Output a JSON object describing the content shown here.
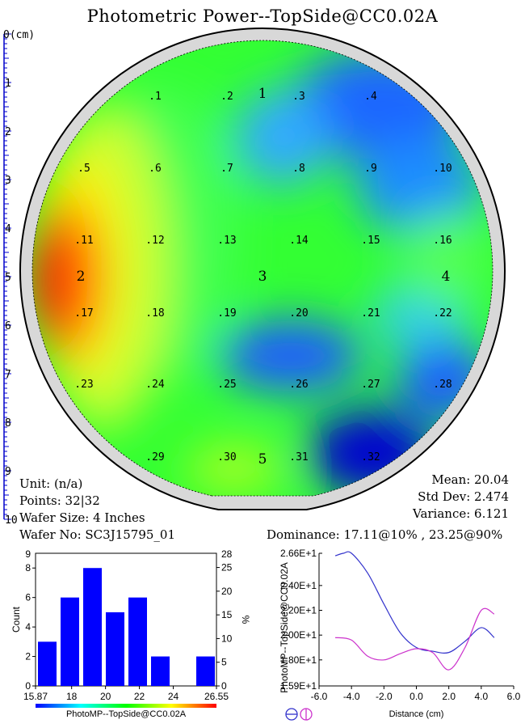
{
  "title": "Photometric Power--TopSide@CC0.02A",
  "colors": {
    "hist_bar": "#0000ff",
    "scan_h": "#3333cc",
    "scan_v": "#cc33cc",
    "wafer_ring": "#000000"
  },
  "wafer_map": {
    "ruler_label": "0(cm)",
    "ruler_ticks": [
      "1",
      "2",
      "3",
      "4",
      "5",
      "6",
      "7",
      "8",
      "9",
      "10"
    ],
    "sites": [
      {
        "id": ".1",
        "col": 1,
        "row": 1
      },
      {
        "id": ".2",
        "col": 2,
        "row": 1
      },
      {
        "id": ".3",
        "col": 3,
        "row": 1
      },
      {
        "id": ".4",
        "col": 4,
        "row": 1
      },
      {
        "id": ".5",
        "col": 0,
        "row": 2
      },
      {
        "id": ".6",
        "col": 1,
        "row": 2
      },
      {
        "id": ".7",
        "col": 2,
        "row": 2
      },
      {
        "id": ".8",
        "col": 3,
        "row": 2
      },
      {
        "id": ".9",
        "col": 4,
        "row": 2
      },
      {
        "id": ".10",
        "col": 5,
        "row": 2
      },
      {
        "id": ".11",
        "col": 0,
        "row": 3
      },
      {
        "id": ".12",
        "col": 1,
        "row": 3
      },
      {
        "id": ".13",
        "col": 2,
        "row": 3
      },
      {
        "id": ".14",
        "col": 3,
        "row": 3
      },
      {
        "id": ".15",
        "col": 4,
        "row": 3
      },
      {
        "id": ".16",
        "col": 5,
        "row": 3
      },
      {
        "id": ".17",
        "col": 0,
        "row": 4
      },
      {
        "id": ".18",
        "col": 1,
        "row": 4
      },
      {
        "id": ".19",
        "col": 2,
        "row": 4
      },
      {
        "id": ".20",
        "col": 3,
        "row": 4
      },
      {
        "id": ".21",
        "col": 4,
        "row": 4
      },
      {
        "id": ".22",
        "col": 5,
        "row": 4
      },
      {
        "id": ".23",
        "col": 0,
        "row": 5
      },
      {
        "id": ".24",
        "col": 1,
        "row": 5
      },
      {
        "id": ".25",
        "col": 2,
        "row": 5
      },
      {
        "id": ".26",
        "col": 3,
        "row": 5
      },
      {
        "id": ".27",
        "col": 4,
        "row": 5
      },
      {
        "id": ".28",
        "col": 5,
        "row": 5
      },
      {
        "id": ".29",
        "col": 1,
        "row": 6
      },
      {
        "id": ".30",
        "col": 2,
        "row": 6
      },
      {
        "id": ".31",
        "col": 3,
        "row": 6
      },
      {
        "id": ".32",
        "col": 4,
        "row": 6
      }
    ],
    "markers": [
      {
        "id": "1",
        "pos": "top"
      },
      {
        "id": "2",
        "pos": "left"
      },
      {
        "id": "3",
        "pos": "center"
      },
      {
        "id": "4",
        "pos": "right"
      },
      {
        "id": "5",
        "pos": "bottom"
      }
    ]
  },
  "info": {
    "unit": "Unit: (n/a)",
    "points": "Points: 32|32",
    "wafer_size": "Wafer Size: 4 Inches",
    "wafer_no": "Wafer No: SC3J15795_01",
    "mean": "Mean: 20.04",
    "std_dev": "Std Dev: 2.474",
    "variance": "Variance: 6.121",
    "dominance": "Dominance: 17.11@10% , 23.25@90%"
  },
  "chart_data": [
    {
      "type": "bar",
      "title": "",
      "xlabel": "PhotoMP--TopSide@CC0.02A",
      "ylabel": "Count",
      "y2label": "%",
      "x_tick_labels": [
        "15.87",
        "18",
        "20",
        "22",
        "24",
        "26.55"
      ],
      "y_tick_labels": [
        "0",
        "2",
        "4",
        "6",
        "8"
      ],
      "y2_tick_labels": [
        "0",
        "5",
        "10",
        "15",
        "20",
        "25"
      ],
      "y2_top_label": "28",
      "y_top_label": "9",
      "ylim": [
        0,
        9
      ],
      "values": [
        3,
        6,
        8,
        5,
        6,
        2,
        0,
        2
      ],
      "bin_range": [
        15.87,
        26.55
      ],
      "grid": false
    },
    {
      "type": "line",
      "title": "",
      "xlabel": "Distance (cm)",
      "ylabel": "PhotoMP--TopSide@CC0.02A",
      "xlim": [
        -6.0,
        6.0
      ],
      "ylim": [
        15.9,
        26.6
      ],
      "x_tick_labels": [
        "-6.0",
        "-4.0",
        "-2.0",
        "0.0",
        "2.0",
        "4.0",
        "6.0"
      ],
      "y_tick_labels": [
        "1.59E+1",
        "1.80E+1",
        "2.00E+1",
        "2.20E+1",
        "2.40E+1",
        "2.66E+1"
      ],
      "series": [
        {
          "color": "#3333cc",
          "x": [
            -5.0,
            -4.5,
            -4.0,
            -3.0,
            -2.0,
            -1.0,
            0.0,
            1.0,
            2.0,
            3.0,
            4.0,
            4.8
          ],
          "y": [
            26.4,
            26.7,
            26.6,
            25.0,
            22.5,
            20.2,
            19.0,
            18.7,
            18.6,
            19.5,
            20.6,
            19.8
          ]
        },
        {
          "color": "#cc33cc",
          "x": [
            -5.0,
            -4.0,
            -3.0,
            -2.0,
            -1.0,
            0.0,
            1.0,
            2.0,
            3.0,
            4.0,
            4.8
          ],
          "y": [
            19.8,
            19.6,
            18.3,
            18.0,
            18.5,
            18.9,
            18.6,
            17.2,
            19.0,
            22.0,
            21.7
          ]
        }
      ]
    }
  ]
}
